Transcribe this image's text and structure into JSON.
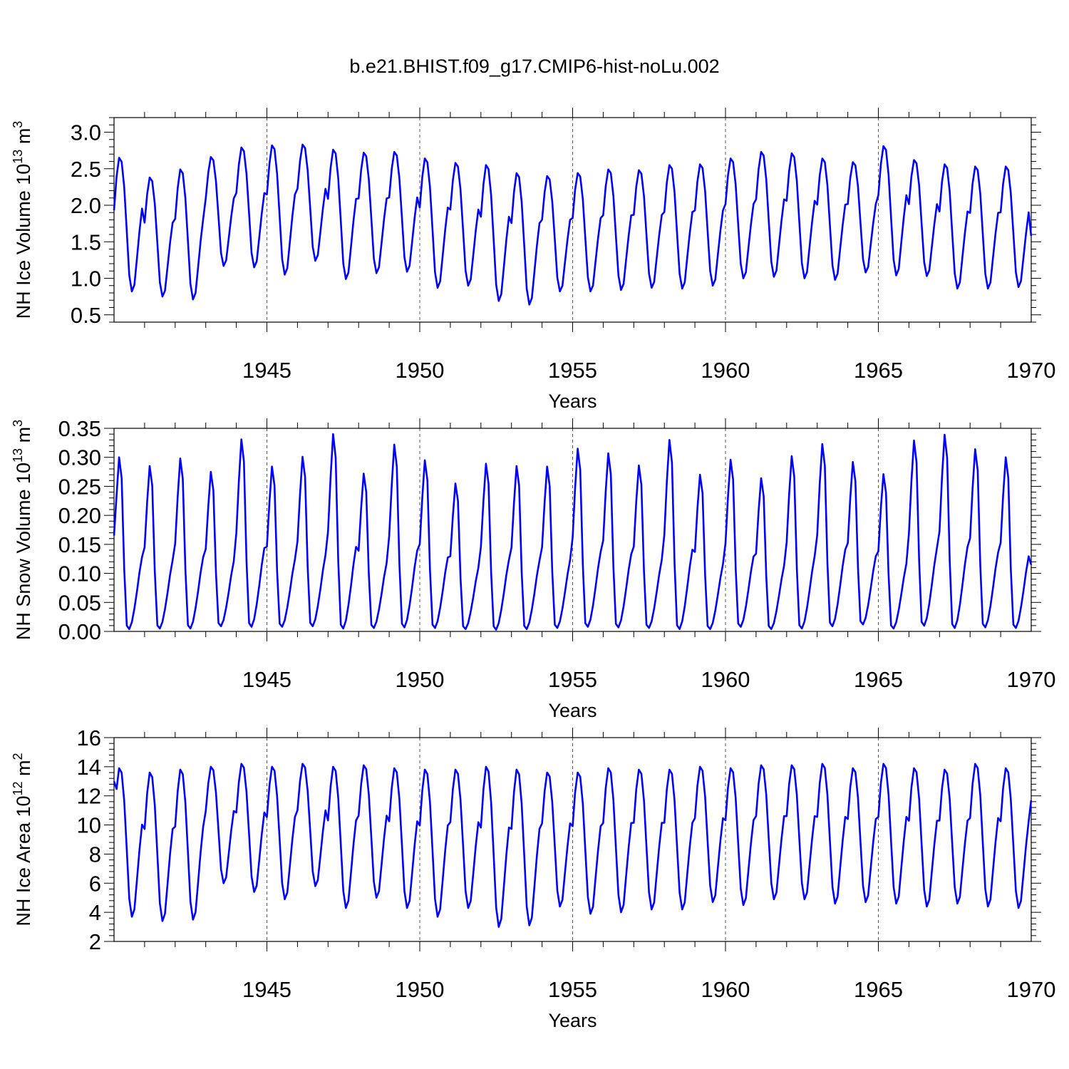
{
  "title": "b.e21.BHIST.f09_g17.CMIP6-hist-noLu.002",
  "colors": {
    "line": "#0000ff",
    "axis": "#000000",
    "grid": "#555555"
  },
  "chart_data": [
    {
      "type": "line",
      "ylabel": "NH Ice Volume 10",
      "ylabel_exp": "13",
      "ylabel_unit": " m",
      "ylabel_unit_exp": "3",
      "xlabel": "Years",
      "xlim": [
        1940,
        1970
      ],
      "ylim": [
        0.4,
        3.2
      ],
      "yticks": [
        0.5,
        1.0,
        1.5,
        2.0,
        2.5,
        3.0
      ],
      "ytick_labels": [
        "0.5",
        "1.0",
        "1.5",
        "2.0",
        "2.5",
        "3.0"
      ],
      "xticks": [
        1945,
        1950,
        1955,
        1960,
        1965,
        1970
      ],
      "xtick_labels": [
        "1945",
        "1950",
        "1955",
        "1960",
        "1965",
        "1970"
      ],
      "grid": "vertical dashed at major x ticks",
      "series": [
        {
          "name": "NH Ice Volume",
          "start": 1940.0,
          "step": 0.08333,
          "annual_max": [
            2.65,
            2.38,
            2.49,
            2.66,
            2.79,
            2.82,
            2.83,
            2.76,
            2.72,
            2.73,
            2.64,
            2.58,
            2.55,
            2.44,
            2.4,
            2.44,
            2.49,
            2.48,
            2.55,
            2.56,
            2.64,
            2.73,
            2.71,
            2.64,
            2.59,
            2.81,
            2.62,
            2.56,
            2.53,
            2.53
          ],
          "annual_min": [
            0.82,
            0.75,
            0.71,
            1.17,
            1.15,
            1.05,
            1.24,
            0.99,
            1.07,
            1.09,
            0.87,
            0.9,
            0.69,
            0.64,
            0.82,
            0.82,
            0.84,
            0.87,
            0.86,
            0.9,
            1.0,
            1.02,
            1.0,
            0.98,
            1.08,
            1.04,
            1.03,
            0.86,
            0.86,
            0.88
          ],
          "start_value": 1.93,
          "end_value": 1.58
        }
      ]
    },
    {
      "type": "line",
      "ylabel": "NH Snow Volume 10",
      "ylabel_exp": "13",
      "ylabel_unit": " m",
      "ylabel_unit_exp": "3",
      "xlabel": "Years",
      "xlim": [
        1940,
        1970
      ],
      "ylim": [
        0.0,
        0.35
      ],
      "yticks": [
        0.0,
        0.05,
        0.1,
        0.15,
        0.2,
        0.25,
        0.3,
        0.35
      ],
      "ytick_labels": [
        "0.00",
        "0.05",
        "0.10",
        "0.15",
        "0.20",
        "0.25",
        "0.30",
        "0.35"
      ],
      "xticks": [
        1945,
        1950,
        1955,
        1960,
        1965,
        1970
      ],
      "xtick_labels": [
        "1945",
        "1950",
        "1955",
        "1960",
        "1965",
        "1970"
      ],
      "grid": "vertical dashed at major x ticks",
      "series": [
        {
          "name": "NH Snow Volume",
          "start": 1940.0,
          "step": 0.08333,
          "annual_max": [
            0.3,
            0.285,
            0.298,
            0.275,
            0.331,
            0.284,
            0.301,
            0.34,
            0.272,
            0.322,
            0.295,
            0.255,
            0.289,
            0.285,
            0.284,
            0.315,
            0.307,
            0.286,
            0.33,
            0.27,
            0.296,
            0.264,
            0.302,
            0.323,
            0.292,
            0.271,
            0.329,
            0.339,
            0.314,
            0.3
          ],
          "annual_min": [
            0.004,
            0.005,
            0.005,
            0.009,
            0.008,
            0.008,
            0.009,
            0.005,
            0.006,
            0.007,
            0.006,
            0.004,
            0.003,
            0.004,
            0.006,
            0.008,
            0.007,
            0.006,
            0.004,
            0.004,
            0.008,
            0.004,
            0.005,
            0.009,
            0.012,
            0.005,
            0.01,
            0.006,
            0.007,
            0.006
          ],
          "start_value": 0.165,
          "end_value": 0.115
        }
      ]
    },
    {
      "type": "line",
      "ylabel": "NH Ice Area 10",
      "ylabel_exp": "12",
      "ylabel_unit": " m",
      "ylabel_unit_exp": "2",
      "xlabel": "Years",
      "xlim": [
        1940,
        1970
      ],
      "ylim": [
        2,
        16
      ],
      "yticks": [
        2,
        4,
        6,
        8,
        10,
        12,
        14,
        16
      ],
      "ytick_labels": [
        "2",
        "4",
        "6",
        "8",
        "10",
        "12",
        "14",
        "16"
      ],
      "xticks": [
        1945,
        1950,
        1955,
        1960,
        1965,
        1970
      ],
      "xtick_labels": [
        "1945",
        "1950",
        "1955",
        "1960",
        "1965",
        "1970"
      ],
      "grid": "vertical dashed at major x ticks",
      "series": [
        {
          "name": "NH Ice Area",
          "start": 1940.0,
          "step": 0.08333,
          "annual_max": [
            13.9,
            13.6,
            13.8,
            14.0,
            14.2,
            14.0,
            14.2,
            14.0,
            14.1,
            13.9,
            13.8,
            13.8,
            14.0,
            13.8,
            13.6,
            13.6,
            13.9,
            13.8,
            13.8,
            14.0,
            13.9,
            14.1,
            14.1,
            14.2,
            13.9,
            14.2,
            13.9,
            13.8,
            14.2,
            13.9
          ],
          "annual_min": [
            3.7,
            3.4,
            3.5,
            6.0,
            5.4,
            4.9,
            5.8,
            4.3,
            5.0,
            4.3,
            3.7,
            4.3,
            3.0,
            3.1,
            4.4,
            3.9,
            4.0,
            4.2,
            4.2,
            4.7,
            4.5,
            4.9,
            4.9,
            4.6,
            4.7,
            4.6,
            4.4,
            4.6,
            4.4,
            4.3
          ],
          "start_value": 13.0,
          "end_value": 11.7
        }
      ]
    }
  ]
}
